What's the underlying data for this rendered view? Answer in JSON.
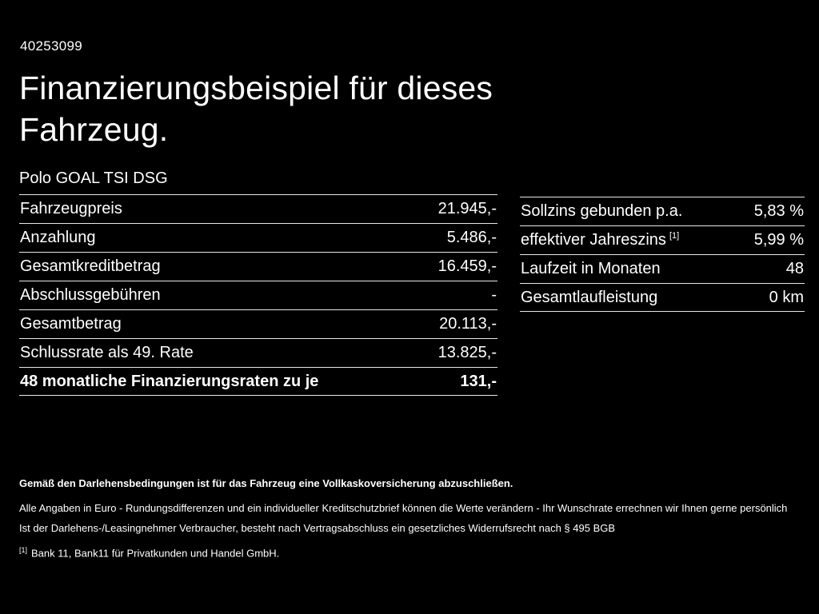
{
  "header": {
    "doc_id": "40253099",
    "title_line1": "Finanzierungsbeispiel für dieses",
    "title_line2": "Fahrzeug.",
    "model": "Polo GOAL TSI DSG"
  },
  "left_table": {
    "rows": [
      {
        "label": "Fahrzeugpreis",
        "value": "21.945,-"
      },
      {
        "label": "Anzahlung",
        "value": "5.486,-"
      },
      {
        "label": "Gesamtkreditbetrag",
        "value": "16.459,-"
      },
      {
        "label": "Abschlussgebühren",
        "value": "-"
      },
      {
        "label": "Gesamtbetrag",
        "value": "20.113,-"
      },
      {
        "label": "Schlussrate als 49. Rate",
        "value": "13.825,-"
      },
      {
        "label": "48 monatliche Finanzierungsraten zu je",
        "value": "131,-"
      }
    ]
  },
  "right_table": {
    "rows": [
      {
        "label": "Sollzins gebunden p.a.",
        "sup": "",
        "value": "5,83 %"
      },
      {
        "label": "effektiver Jahreszins",
        "sup": "[1]",
        "value": "5,99 %"
      },
      {
        "label": "Laufzeit in Monaten",
        "sup": "",
        "value": "48"
      },
      {
        "label": "Gesamtlaufleistung",
        "sup": "",
        "value": "0 km"
      }
    ]
  },
  "footer": {
    "insurance_note": "Gemäß den Darlehensbedingungen ist für das Fahrzeug eine Vollkaskoversicherung abzuschließen.",
    "disclaimer_1": "Alle Angaben in Euro - Rundungsdifferenzen und ein individueller Kreditschutzbrief können die Werte verändern - Ihr Wunschrate errechnen wir Ihnen gerne persönlich",
    "disclaimer_2": "Ist der Darlehens-/Leasingnehmer Verbraucher, besteht nach Vertragsabschluss ein gesetzliches Widerrufsrecht nach § 495 BGB",
    "footnote_marker": "[1]",
    "footnote_text": "Bank 11, Bank11 für Privatkunden und Handel GmbH."
  },
  "colors": {
    "background": "#000000",
    "text": "#ffffff",
    "rule": "#e9e9e9"
  }
}
